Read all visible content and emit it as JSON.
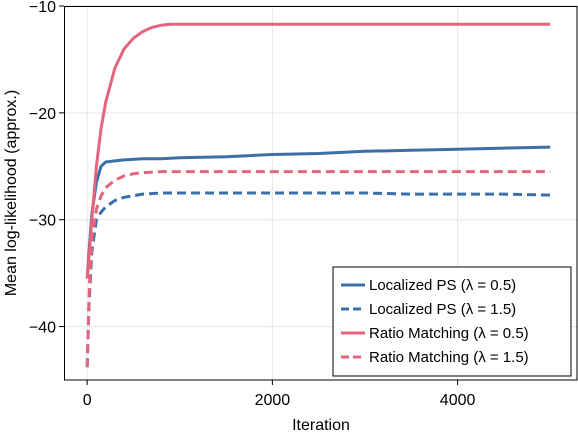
{
  "chart_data": {
    "type": "line",
    "title": "",
    "xlabel": "Iteration",
    "ylabel": "Mean log-likelihood (approx.)",
    "xlim": [
      -250,
      5300
    ],
    "ylim": [
      -45,
      -10
    ],
    "xticks": [
      0,
      2000,
      4000
    ],
    "yticks": [
      -10,
      -20,
      -30,
      -40
    ],
    "xtick_labels": [
      "0",
      "2000",
      "4000"
    ],
    "ytick_labels": [
      "−10",
      "−20",
      "−30",
      "−40"
    ],
    "grid": true,
    "legend_position": "bottom-right",
    "series": [
      {
        "name": "Localized PS (λ = 0.5)",
        "color": "#3b6fa8",
        "style": "solid",
        "x": [
          0,
          20,
          50,
          100,
          150,
          200,
          300,
          400,
          600,
          800,
          1000,
          1500,
          2000,
          2500,
          3000,
          3500,
          4000,
          4500,
          5000
        ],
        "y": [
          -35.5,
          -33.0,
          -29.5,
          -26.5,
          -25.0,
          -24.6,
          -24.5,
          -24.4,
          -24.3,
          -24.3,
          -24.2,
          -24.1,
          -23.9,
          -23.8,
          -23.6,
          -23.5,
          -23.4,
          -23.3,
          -23.2
        ]
      },
      {
        "name": "Localized PS (λ = 1.5)",
        "color": "#3b6fa8",
        "style": "dashed",
        "x": [
          0,
          20,
          50,
          100,
          150,
          200,
          300,
          400,
          600,
          800,
          1000,
          1500,
          2000,
          2500,
          3000,
          3500,
          4000,
          4500,
          5000
        ],
        "y": [
          -43.8,
          -38.0,
          -33.0,
          -30.0,
          -29.3,
          -28.8,
          -28.2,
          -27.9,
          -27.6,
          -27.5,
          -27.5,
          -27.5,
          -27.5,
          -27.5,
          -27.5,
          -27.6,
          -27.6,
          -27.6,
          -27.7
        ]
      },
      {
        "name": "Ratio Matching (λ = 0.5)",
        "color": "#e3667c",
        "style": "solid",
        "x": [
          0,
          25,
          50,
          100,
          150,
          200,
          300,
          400,
          500,
          600,
          700,
          800,
          900,
          1000,
          1500,
          2000,
          3000,
          4000,
          5000
        ],
        "y": [
          -35.5,
          -33.0,
          -30.0,
          -25.0,
          -21.5,
          -19.0,
          -15.8,
          -14.0,
          -13.0,
          -12.4,
          -12.0,
          -11.8,
          -11.7,
          -11.7,
          -11.7,
          -11.7,
          -11.7,
          -11.7,
          -11.7
        ]
      },
      {
        "name": "Ratio Matching (λ = 1.5)",
        "color": "#e3667c",
        "style": "dashed",
        "x": [
          0,
          25,
          50,
          100,
          150,
          200,
          300,
          400,
          500,
          600,
          800,
          1000,
          1500,
          2000,
          3000,
          4000,
          5000
        ],
        "y": [
          -43.8,
          -36.0,
          -32.0,
          -29.0,
          -27.8,
          -27.0,
          -26.3,
          -25.9,
          -25.7,
          -25.6,
          -25.5,
          -25.5,
          -25.5,
          -25.5,
          -25.5,
          -25.5,
          -25.5
        ]
      }
    ]
  }
}
